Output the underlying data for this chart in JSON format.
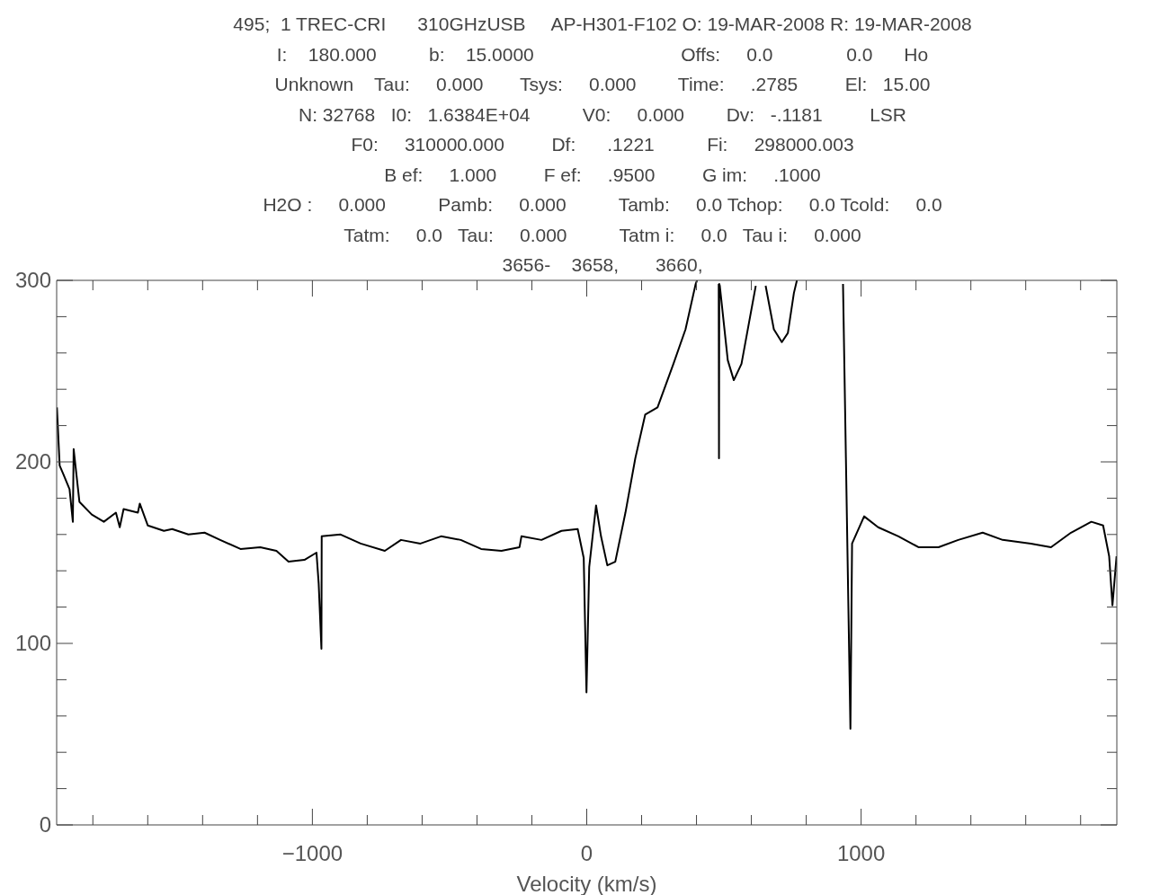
{
  "chart_data": {
    "type": "line",
    "xlabel": "Velocity (km/s)",
    "annotations": [
      "495;  1 TREC-CRI      310GHzUSB     AP-H301-F102 O: 19-MAR-2008 R: 19-MAR-2008",
      "I:    180.000          b:    15.0000                            Offs:     0.0              0.0      Ho",
      "Unknown    Tau:     0.000       Tsys:     0.000        Time:     .2785         El:   15.00",
      "N: 32768   I0:   1.6384E+04          V0:     0.000        Dv:   -.1181         LSR",
      "F0:     310000.000         Df:      .1221          Fi:     298000.003",
      "B ef:     1.000         F ef:     .9500         G im:     .1000",
      "H2O :     0.000          Pamb:     0.000          Tamb:     0.0 Tchop:     0.0 Tcold:     0.0",
      "Tatm:     0.0   Tau:     0.000          Tatm i:     0.0   Tau i:     0.000",
      "3656-    3658,       3660,"
    ],
    "xlim": [
      -1932,
      1932
    ],
    "xticks": [
      {
        "value": -1800,
        "label": null
      },
      {
        "value": -1600,
        "label": null
      },
      {
        "value": -1400,
        "label": null
      },
      {
        "value": -1200,
        "label": null
      },
      -1000,
      {
        "value": -800,
        "label": null
      },
      {
        "value": -600,
        "label": null
      },
      {
        "value": -400,
        "label": null
      },
      {
        "value": -200,
        "label": null
      },
      0,
      {
        "value": 200,
        "label": null
      },
      {
        "value": 400,
        "label": null
      },
      {
        "value": 600,
        "label": null
      },
      {
        "value": 800,
        "label": null
      },
      1000,
      {
        "value": 1200,
        "label": null
      },
      {
        "value": 1400,
        "label": null
      },
      {
        "value": 1600,
        "label": null
      },
      {
        "value": 1800,
        "label": null
      }
    ],
    "ylim": [
      0,
      300
    ],
    "yticks": [
      0,
      {
        "value": 20,
        "label": null
      },
      {
        "value": 40,
        "label": null
      },
      {
        "value": 60,
        "label": null
      },
      {
        "value": 80,
        "label": null
      },
      100,
      {
        "value": 120,
        "label": null
      },
      {
        "value": 140,
        "label": null
      },
      {
        "value": 160,
        "label": null
      },
      {
        "value": 180,
        "label": null
      },
      200,
      {
        "value": 220,
        "label": null
      },
      {
        "value": 240,
        "label": null
      },
      {
        "value": 260,
        "label": null
      },
      {
        "value": 280,
        "label": null
      },
      300
    ],
    "marker": "none",
    "line_style": "solid",
    "series": [
      {
        "color": "#000000",
        "x": [
          -1931,
          -1921,
          -1907,
          -1885,
          -1873,
          -1870,
          -1849,
          -1804,
          -1760,
          -1716,
          -1702,
          -1688,
          -1636,
          -1629,
          -1600,
          -1541,
          -1511,
          -1452,
          -1393,
          -1336,
          -1262,
          -1190,
          -1131,
          -1087,
          -1029,
          -985,
          -977,
          -967,
          -966,
          -897,
          -824,
          -736,
          -677,
          -606,
          -531,
          -459,
          -385,
          -311,
          -245,
          -238,
          -165,
          -92,
          -33,
          -11,
          -1,
          9,
          34,
          52,
          75,
          104,
          141,
          177,
          213,
          258,
          316,
          360,
          397,
          402,
          442,
          481,
          482,
          483,
          485,
          514,
          536,
          564,
          593,
          616,
          634,
          652,
          682,
          711,
          733,
          755,
          766,
          850,
          934,
          961,
          967,
          1011,
          1062,
          1136,
          1209,
          1282,
          1354,
          1443,
          1516,
          1619,
          1692,
          1765,
          1839,
          1882,
          1904,
          1916,
          1931
        ],
        "values": [
          230,
          198,
          193,
          185,
          167,
          207,
          178,
          171,
          167,
          172,
          164,
          174,
          172,
          177,
          165,
          162,
          163,
          160,
          161,
          157,
          152,
          153,
          151,
          145,
          146,
          150,
          133,
          97,
          159,
          160,
          155,
          151,
          157,
          155,
          159,
          157,
          152,
          151,
          153,
          159,
          157,
          162,
          163,
          147,
          73,
          142,
          176,
          159,
          143,
          145,
          172,
          202,
          226,
          230,
          254,
          273,
          298,
          300,
          null,
          298,
          202,
          298,
          297,
          256,
          245,
          254,
          278,
          297,
          null,
          297,
          273,
          266,
          271,
          293,
          300,
          null,
          298,
          53,
          155,
          170,
          164,
          159,
          153,
          153,
          157,
          161,
          157,
          155,
          153,
          161,
          167,
          165,
          148,
          121,
          148
        ]
      }
    ]
  }
}
